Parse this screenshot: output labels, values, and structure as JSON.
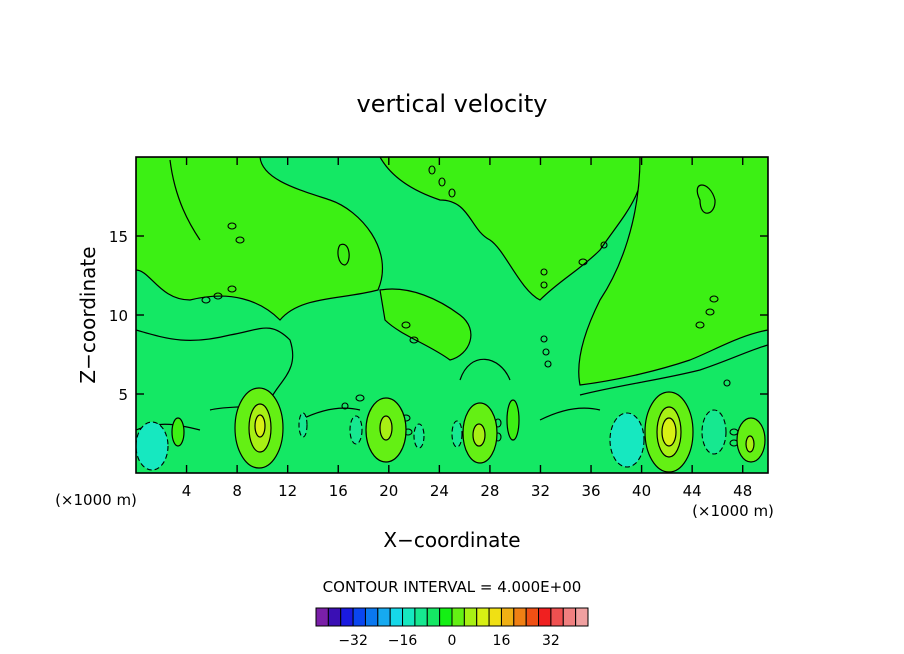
{
  "chart_data": {
    "type": "heatmap",
    "title": "vertical velocity",
    "xlabel": "X−coordinate",
    "ylabel": "Z−coordinate",
    "x_unit_left": "(×1000 m)",
    "x_unit_right": "(×1000 m)",
    "xlim": [
      0,
      50
    ],
    "ylim": [
      0,
      20
    ],
    "x_ticks": [
      4,
      8,
      12,
      16,
      20,
      24,
      28,
      32,
      36,
      40,
      44,
      48
    ],
    "y_ticks": [
      5,
      10,
      15
    ],
    "contour_interval_text": "CONTOUR INTERVAL = 4.000E+00",
    "contour_interval": 4,
    "colorbar": {
      "levels": [
        -36,
        -32,
        -28,
        -24,
        -20,
        -16,
        -12,
        -8,
        -4,
        0,
        4,
        8,
        12,
        16,
        20,
        24,
        28,
        32,
        36
      ],
      "tick_labels": [
        "−32",
        "−16",
        "0",
        "16",
        "32"
      ],
      "tick_values": [
        -32,
        -16,
        0,
        16,
        32
      ],
      "colors": [
        "#7a1fa8",
        "#3a0fb4",
        "#1a1ae0",
        "#0a46f0",
        "#0a78f0",
        "#16aaf0",
        "#16d8e8",
        "#16e8c0",
        "#16e890",
        "#14e864",
        "#14f014",
        "#64f014",
        "#a8f014",
        "#d8f014",
        "#f0e014",
        "#f0b014",
        "#f08014",
        "#f05014",
        "#f02020",
        "#f05050",
        "#f08080",
        "#f0a0a0"
      ]
    },
    "features": [
      {
        "x": 10,
        "z": 2.9,
        "value": 12
      },
      {
        "x": 19.8,
        "z": 2.8,
        "value": 12
      },
      {
        "x": 27.2,
        "z": 2.5,
        "value": 12
      },
      {
        "x": 42.2,
        "z": 2.6,
        "value": 12
      },
      {
        "x": 48.5,
        "z": 2.3,
        "value": 8
      },
      {
        "x": 1.2,
        "z": 2.0,
        "value": -4
      },
      {
        "x": 39.5,
        "z": 2.2,
        "value": -4
      }
    ],
    "grid": false
  }
}
